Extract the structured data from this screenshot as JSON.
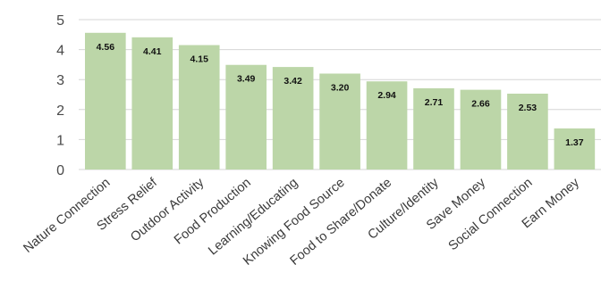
{
  "chart_data": {
    "type": "bar",
    "categories": [
      "Nature Connection",
      "Stress Relief",
      "Outdoor Activity",
      "Food Production",
      "Learning/Educating",
      "Knowing Food Source",
      "Food to Share/Donate",
      "Culture/Identity",
      "Save Money",
      "Social Connection",
      "Earn Money"
    ],
    "values": [
      4.56,
      4.41,
      4.15,
      3.49,
      3.42,
      3.2,
      2.94,
      2.71,
      2.66,
      2.53,
      1.37
    ],
    "data_labels": [
      "4.56",
      "4.41",
      "4.15",
      "3.49",
      "3.42",
      "3.20",
      "2.94",
      "2.71",
      "2.66",
      "2.53",
      "1.37"
    ],
    "title": "",
    "xlabel": "",
    "ylabel": "",
    "ylim": [
      0,
      5
    ],
    "yticks": [
      "0",
      "1",
      "2",
      "3",
      "4",
      "5"
    ],
    "grid": true,
    "bar_color": "#bcd6a8",
    "gridline_color": "#d6d6d6"
  }
}
